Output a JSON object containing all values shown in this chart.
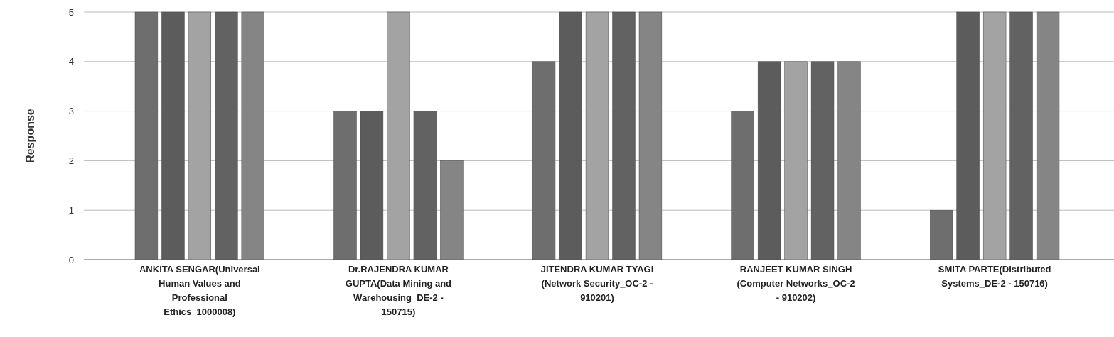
{
  "chart_data": {
    "type": "bar",
    "ylabel": "Response",
    "categories": [
      "ANKITA SENGAR(Universal Human Values and Professional Ethics_1000008)",
      "Dr.RAJENDRA KUMAR GUPTA(Data Mining and Warehousing_DE-2 - 150715)",
      "JITENDRA KUMAR TYAGI (Network Security_OC-2 - 910201)",
      "RANJEET KUMAR SINGH (Computer Networks_OC-2 - 910202)",
      "SMITA PARTE(Distributed Systems_DE-2 - 150716)"
    ],
    "series": [
      {
        "color": "#6e6e6e",
        "values": [
          5,
          3,
          4,
          3,
          1
        ]
      },
      {
        "color": "#5c5c5c",
        "values": [
          5,
          3,
          5,
          4,
          5
        ]
      },
      {
        "color": "#a3a3a3",
        "values": [
          5,
          5,
          5,
          4,
          5
        ]
      },
      {
        "color": "#626262",
        "values": [
          5,
          3,
          5,
          4,
          5
        ]
      },
      {
        "color": "#858585",
        "values": [
          5,
          2,
          5,
          4,
          5
        ]
      }
    ],
    "ylim": [
      0,
      5
    ],
    "yticks": [
      0,
      1,
      2,
      3,
      4,
      5
    ],
    "grid": "y"
  }
}
